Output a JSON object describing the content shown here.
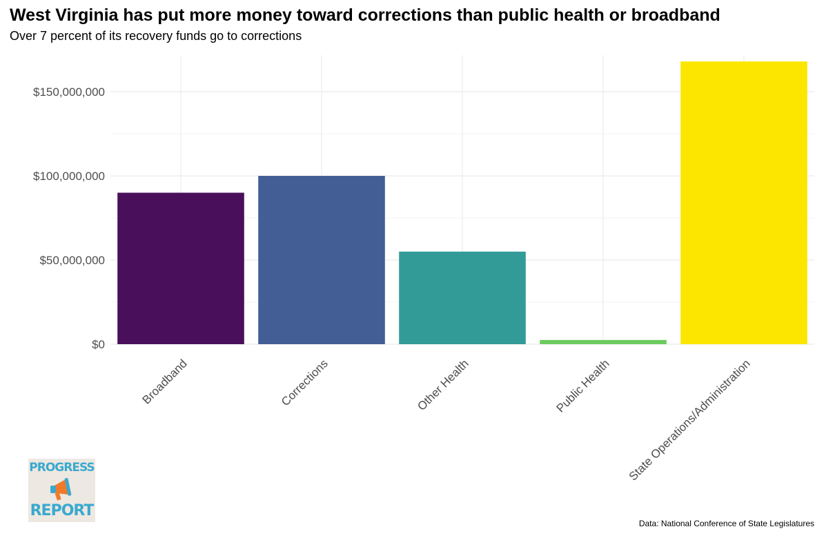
{
  "title": "West Virginia has put more money toward corrections than public health or broadband",
  "subtitle": "Over 7 percent of its recovery funds go to corrections",
  "caption": "Data: National Conference of State Legislatures",
  "logo": {
    "top_text": "PROGRESS",
    "bottom_text": "REPORT",
    "icon": "megaphone-icon",
    "colors": {
      "text": "#3aa9cf",
      "background": "#ede8e1",
      "accent": "#f07a2a"
    }
  },
  "chart_data": {
    "type": "bar",
    "title": "West Virginia has put more money toward corrections than public health or broadband",
    "subtitle": "Over 7 percent of its recovery funds go to corrections",
    "xlabel": "",
    "ylabel": "",
    "categories": [
      "Broadband",
      "Corrections",
      "Other Health",
      "Public Health",
      "State Operations/Administration"
    ],
    "values": [
      90000000,
      100000000,
      55000000,
      2500000,
      168000000
    ],
    "colors": [
      "#4a0f5b",
      "#435e95",
      "#329b97",
      "#6ccb5f",
      "#fce600"
    ],
    "ylim": [
      0,
      168000000
    ],
    "yticks": [
      0,
      50000000,
      100000000,
      150000000
    ],
    "ytick_labels": [
      "$0",
      "$50,000,000",
      "$100,000,000",
      "$150,000,000"
    ],
    "grid": true,
    "legend": "none"
  }
}
